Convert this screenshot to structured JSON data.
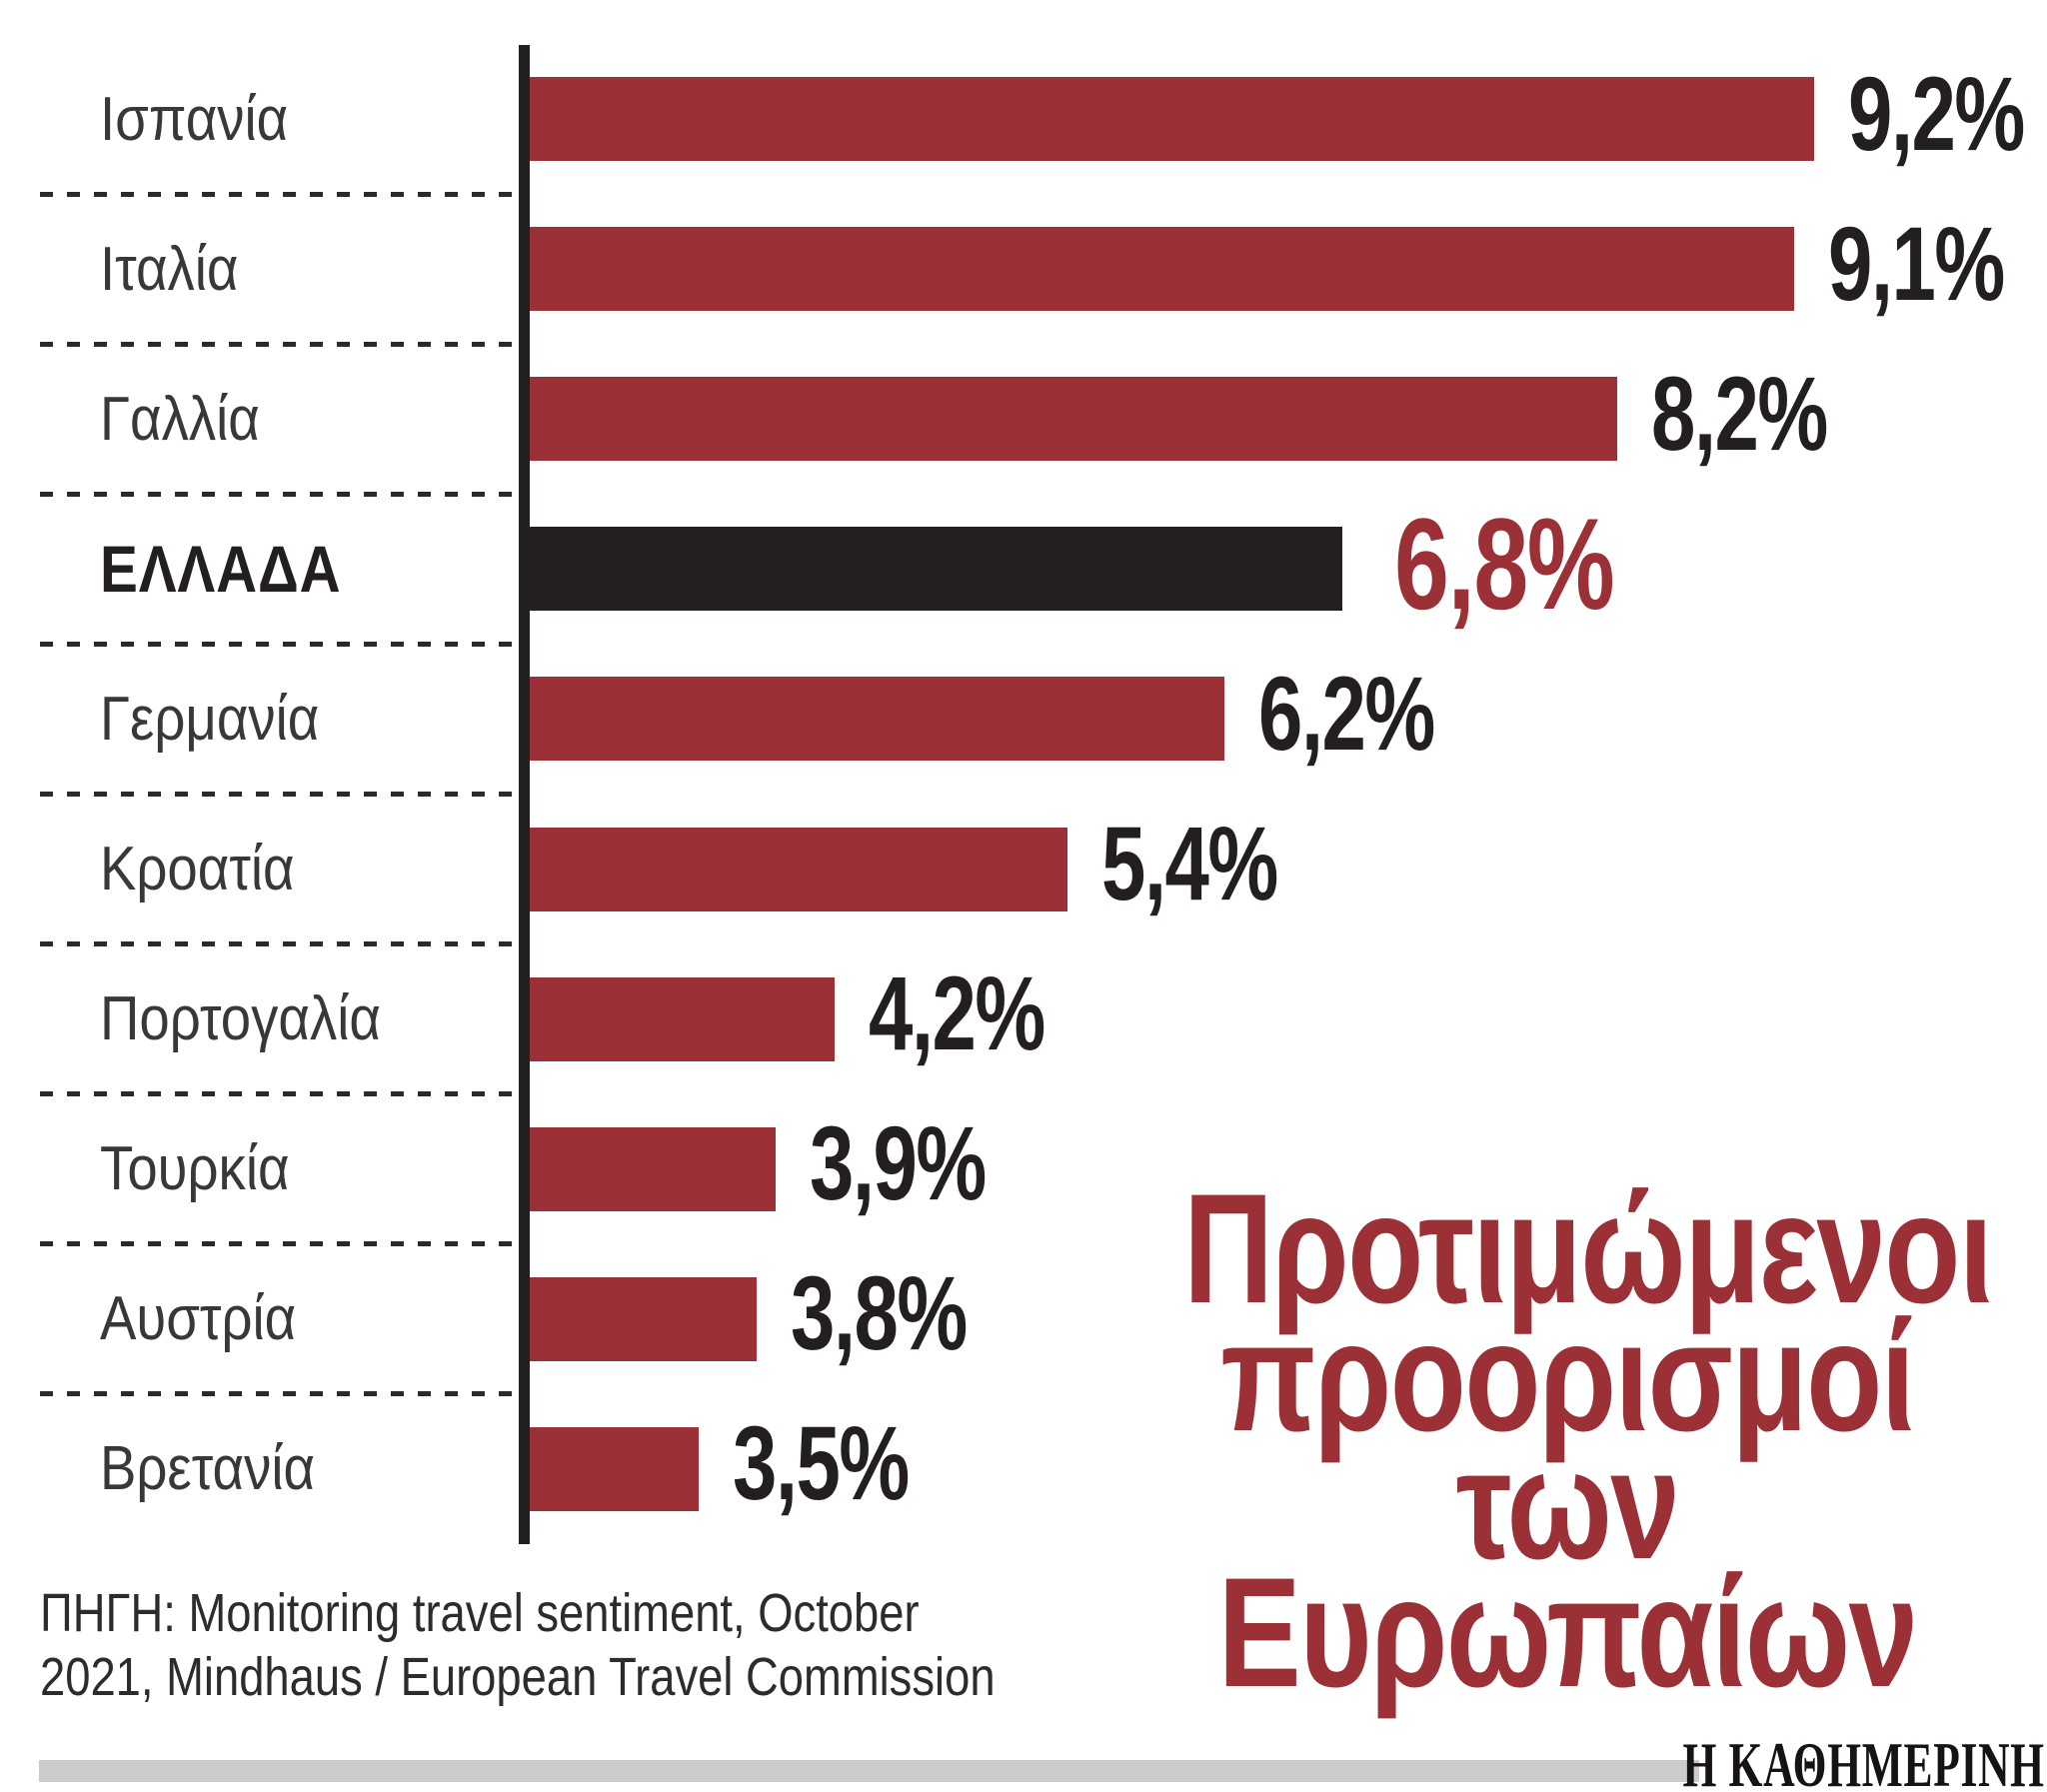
{
  "chart_data": {
    "type": "bar",
    "orientation": "horizontal",
    "title": "Προτιμώμενοι προορισμοί των Ευρωπαίων",
    "categories": [
      "Ισπανία",
      "Ιταλία",
      "Γαλλία",
      "ΕΛΛΑΔΑ",
      "Γερμανία",
      "Κροατία",
      "Πορτογαλία",
      "Τουρκία",
      "Αυστρία",
      "Βρετανία"
    ],
    "values": [
      9.2,
      9.1,
      8.2,
      6.8,
      6.2,
      5.4,
      4.2,
      3.9,
      3.8,
      3.5
    ],
    "value_labels": [
      "9,2%",
      "9,1%",
      "8,2%",
      "6,8%",
      "6,2%",
      "5,4%",
      "4,2%",
      "3,9%",
      "3,8%",
      "3,5%"
    ],
    "highlight_index": 3,
    "xlabel": "",
    "ylabel": "",
    "grid": false,
    "legend": false,
    "layout_hints": {
      "drawn_bar_pct": [
        84.85,
        83.53,
        71.87,
        53.69,
        45.92,
        35.51,
        20.16,
        16.27,
        15.02,
        11.13
      ],
      "note": "bar lengths as drawn in original graphic are not strictly proportional to values"
    }
  },
  "title": {
    "lines": [
      "Προτιμώμενοι",
      "προορισμοί",
      "των Ευρωπαίων"
    ]
  },
  "source": {
    "line1": "ΠΗΓΗ: Monitoring travel sentiment, October",
    "line2": "2021, Mindhaus / European Travel Commission"
  },
  "footer": {
    "brand": "Η ΚΑΘΗΜΕΡΙΝΗ"
  },
  "colors": {
    "bar_red": "#9b3136",
    "highlight_black": "#231f20",
    "value_black": "#231f20",
    "highlight_value_red": "#9b3136",
    "title_red": "#9b3136",
    "footer_gray": "#cccccc"
  }
}
